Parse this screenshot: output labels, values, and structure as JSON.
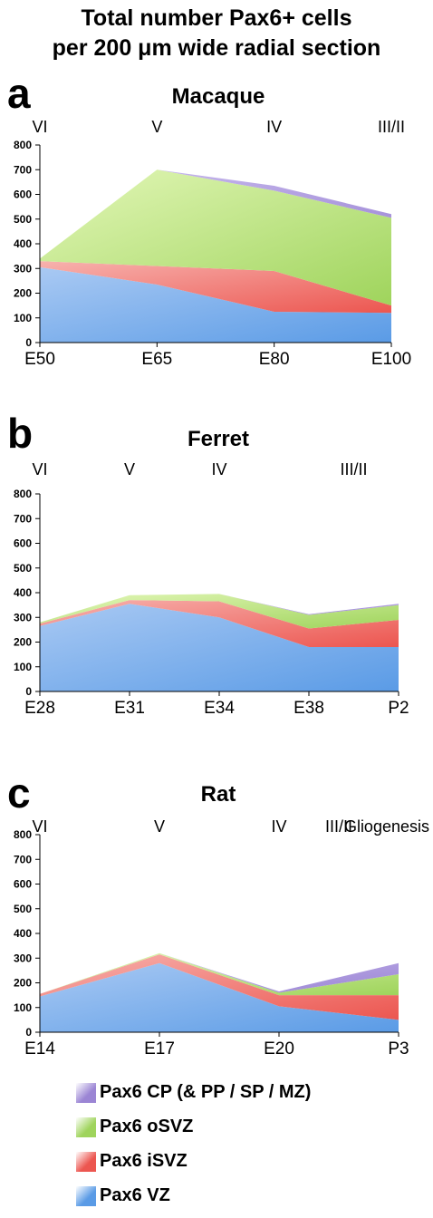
{
  "figure": {
    "title_line1": "Total number Pax6+ cells",
    "title_line2": "per 200 μm wide radial section"
  },
  "colors": {
    "cp": "#a08cd8",
    "osvz": "#b4e27a",
    "isvz": "#f07a74",
    "vz": "#79aee8"
  },
  "legend": [
    {
      "label": "Pax6 CP (& PP / SP / MZ)",
      "color": "#9b85d4"
    },
    {
      "label": "Pax6 oSVZ",
      "color": "#9fd45c"
    },
    {
      "label": "Pax6 iSVZ",
      "color": "#ec5650"
    },
    {
      "label": "Pax6 VZ",
      "color": "#5a9be6"
    }
  ],
  "chart_data": [
    {
      "type": "area",
      "stacked": true,
      "panel": "a",
      "title": "Macaque",
      "categories": [
        "E50",
        "E65",
        "E80",
        "E100"
      ],
      "phases": [
        {
          "label": "VI",
          "at": 0
        },
        {
          "label": "V",
          "at": 1
        },
        {
          "label": "IV",
          "at": 2
        },
        {
          "label": "III/II",
          "at": 3
        }
      ],
      "series": [
        {
          "name": "Pax6 VZ",
          "values": [
            305,
            235,
            125,
            120
          ]
        },
        {
          "name": "Pax6 iSVZ",
          "values": [
            25,
            75,
            165,
            30
          ]
        },
        {
          "name": "Pax6 oSVZ",
          "values": [
            10,
            390,
            325,
            355
          ]
        },
        {
          "name": "Pax6 CP (& PP / SP / MZ)",
          "values": [
            0,
            0,
            20,
            15
          ]
        }
      ],
      "ylim": [
        0,
        800
      ],
      "yticks": [
        0,
        100,
        200,
        300,
        400,
        500,
        600,
        700,
        800
      ]
    },
    {
      "type": "area",
      "stacked": true,
      "panel": "b",
      "title": "Ferret",
      "categories": [
        "E28",
        "E31",
        "E34",
        "E38",
        "P2"
      ],
      "phases": [
        {
          "label": "VI",
          "at": 0
        },
        {
          "label": "V",
          "at": 1
        },
        {
          "label": "IV",
          "at": 2
        },
        {
          "label": "III/II",
          "at": 3.5
        }
      ],
      "series": [
        {
          "name": "Pax6 VZ",
          "values": [
            265,
            355,
            300,
            180,
            180
          ]
        },
        {
          "name": "Pax6 iSVZ",
          "values": [
            10,
            15,
            65,
            75,
            110
          ]
        },
        {
          "name": "Pax6 oSVZ",
          "values": [
            5,
            20,
            30,
            55,
            60
          ]
        },
        {
          "name": "Pax6 CP (& PP / SP / MZ)",
          "values": [
            0,
            0,
            0,
            3,
            5
          ]
        }
      ],
      "ylim": [
        0,
        800
      ],
      "yticks": [
        0,
        100,
        200,
        300,
        400,
        500,
        600,
        700,
        800
      ]
    },
    {
      "type": "area",
      "stacked": true,
      "panel": "c",
      "title": "Rat",
      "categories": [
        "E14",
        "E17",
        "E20",
        "P3"
      ],
      "phases": [
        {
          "label": "VI",
          "at": 0
        },
        {
          "label": "V",
          "at": 1
        },
        {
          "label": "IV",
          "at": 2
        },
        {
          "label": "III/II",
          "at": 2.5
        },
        {
          "label": "Gliogenesis",
          "at": 3.35
        }
      ],
      "series": [
        {
          "name": "Pax6 VZ",
          "values": [
            145,
            280,
            105,
            50
          ]
        },
        {
          "name": "Pax6 iSVZ",
          "values": [
            10,
            35,
            45,
            100
          ]
        },
        {
          "name": "Pax6 oSVZ",
          "values": [
            0,
            5,
            10,
            85
          ]
        },
        {
          "name": "Pax6 CP (& PP / SP / MZ)",
          "values": [
            0,
            0,
            5,
            45
          ]
        }
      ],
      "ylim": [
        0,
        800
      ],
      "yticks": [
        0,
        100,
        200,
        300,
        400,
        500,
        600,
        700,
        800
      ]
    }
  ]
}
